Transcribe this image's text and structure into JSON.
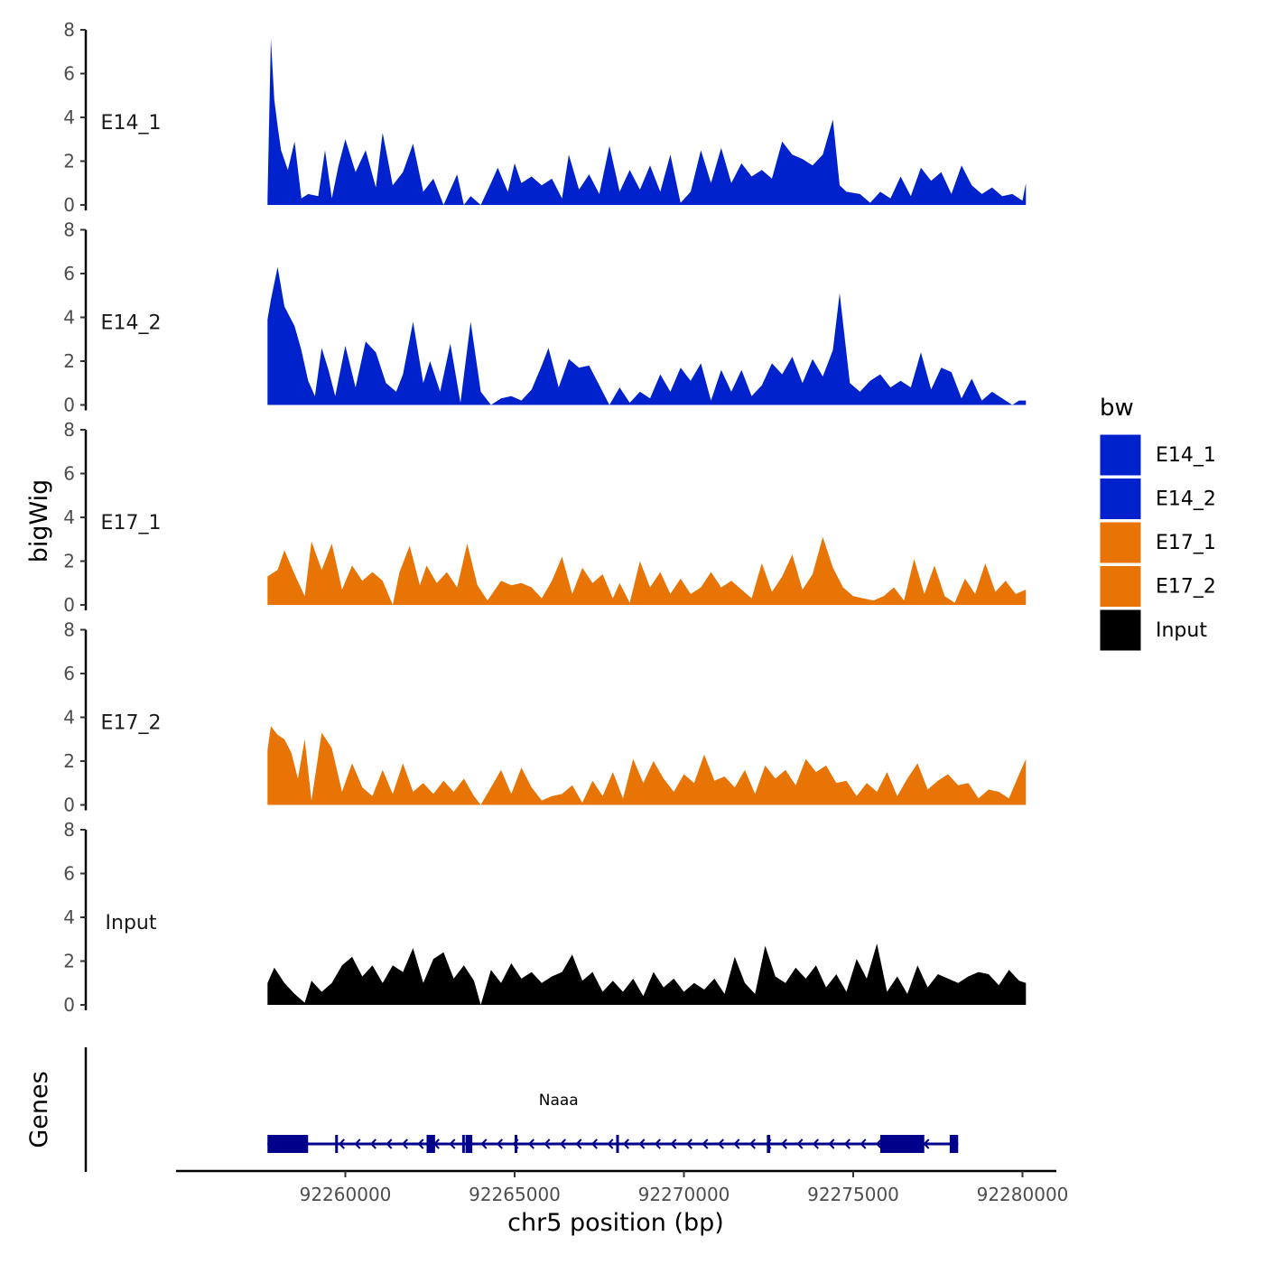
{
  "chart_data": {
    "type": "area",
    "chromosome": "chr5",
    "xlabel": "chr5 position (bp)",
    "ylabel": "bigWig",
    "genes_label": "Genes",
    "xlim": [
      92255000,
      92281000
    ],
    "data_range": [
      92257700,
      92280100
    ],
    "ylim": [
      0,
      8
    ],
    "y_ticks": [
      0,
      2,
      4,
      6,
      8
    ],
    "x_ticks": [
      92260000,
      92265000,
      92270000,
      92275000,
      92280000
    ],
    "x_tick_labels": [
      "92260000",
      "92265000",
      "92270000",
      "92275000",
      "92280000"
    ],
    "legend": {
      "title": "bw",
      "position": "right",
      "entries": [
        {
          "label": "E14_1",
          "color": "#0022CC"
        },
        {
          "label": "E14_2",
          "color": "#0022CC"
        },
        {
          "label": "E17_1",
          "color": "#E87405"
        },
        {
          "label": "E17_2",
          "color": "#E87405"
        },
        {
          "label": "Input",
          "color": "#000000"
        }
      ]
    },
    "series": [
      {
        "name": "E14_1",
        "color": "#0022CC",
        "x": [
          92257700,
          92257800,
          92257900,
          92258000,
          92258100,
          92258300,
          92258500,
          92258700,
          92258900,
          92259200,
          92259400,
          92259600,
          92259800,
          92260000,
          92260300,
          92260600,
          92260900,
          92261100,
          92261400,
          92261700,
          92262000,
          92262300,
          92262600,
          92262900,
          92263300,
          92263500,
          92263700,
          92264000,
          92264300,
          92264500,
          92264800,
          92265000,
          92265200,
          92265500,
          92265800,
          92266100,
          92266400,
          92266600,
          92266900,
          92267200,
          92267500,
          92267800,
          92268100,
          92268400,
          92268700,
          92269000,
          92269300,
          92269600,
          92269900,
          92270200,
          92270500,
          92270800,
          92271100,
          92271400,
          92271700,
          92272000,
          92272300,
          92272600,
          92272900,
          92273200,
          92273500,
          92273800,
          92274100,
          92274400,
          92274600,
          92274800,
          92275200,
          92275500,
          92275800,
          92276100,
          92276400,
          92276700,
          92277000,
          92277300,
          92277600,
          92277900,
          92278200,
          92278500,
          92278800,
          92279100,
          92279400,
          92279700,
          92280000,
          92280100
        ],
        "values": [
          0.3,
          7.6,
          4.8,
          3.6,
          2.5,
          1.6,
          2.9,
          0.3,
          0.5,
          0.4,
          2.5,
          0.3,
          1.8,
          3.0,
          1.5,
          2.5,
          0.8,
          3.3,
          0.9,
          1.5,
          2.8,
          0.6,
          1.2,
          0,
          1.4,
          0,
          0.4,
          0,
          1.0,
          1.7,
          0.6,
          1.9,
          1.0,
          1.3,
          0.9,
          1.2,
          0.3,
          2.3,
          0.7,
          1.4,
          0.5,
          2.7,
          0.6,
          1.6,
          0.7,
          1.8,
          0.6,
          2.3,
          0.1,
          0.6,
          2.5,
          1.0,
          2.6,
          1.0,
          1.9,
          1.3,
          1.6,
          1.2,
          2.9,
          2.3,
          2.1,
          1.8,
          2.3,
          3.9,
          0.9,
          0.6,
          0.5,
          0.1,
          0.6,
          0.3,
          1.3,
          0.4,
          1.7,
          1.1,
          1.5,
          0.5,
          1.8,
          0.9,
          0.5,
          0.8,
          0.4,
          0.5,
          0.2,
          1.0
        ]
      },
      {
        "name": "E14_2",
        "color": "#0022CC",
        "x": [
          92257700,
          92257800,
          92258000,
          92258200,
          92258500,
          92258700,
          92258900,
          92259100,
          92259300,
          92259500,
          92259700,
          92260000,
          92260300,
          92260600,
          92260900,
          92261200,
          92261500,
          92261700,
          92262000,
          92262300,
          92262500,
          92262800,
          92263100,
          92263400,
          92263700,
          92264000,
          92264300,
          92264600,
          92264900,
          92265200,
          92265500,
          92265800,
          92266000,
          92266300,
          92266600,
          92266900,
          92267200,
          92267500,
          92267800,
          92268100,
          92268400,
          92268700,
          92269000,
          92269300,
          92269600,
          92269900,
          92270200,
          92270500,
          92270800,
          92271100,
          92271400,
          92271700,
          92272000,
          92272300,
          92272600,
          92272900,
          92273200,
          92273500,
          92273800,
          92274100,
          92274400,
          92274600,
          92274900,
          92275200,
          92275500,
          92275800,
          92276100,
          92276400,
          92276700,
          92277000,
          92277300,
          92277600,
          92277900,
          92278200,
          92278500,
          92278800,
          92279100,
          92279400,
          92279700,
          92279900,
          92280100
        ],
        "values": [
          3.9,
          4.8,
          6.3,
          4.5,
          3.6,
          2.5,
          1.1,
          0.4,
          2.6,
          1.6,
          0.4,
          2.7,
          0.8,
          2.9,
          2.4,
          1.0,
          0.6,
          1.4,
          3.8,
          1.0,
          2.0,
          0.6,
          2.8,
          0.1,
          3.8,
          0.6,
          0,
          0.3,
          0.4,
          0.2,
          0.7,
          1.8,
          2.6,
          0.8,
          2.1,
          1.7,
          1.8,
          0.9,
          0,
          0.8,
          0.1,
          0.6,
          0.3,
          1.4,
          0.6,
          1.7,
          1.1,
          1.9,
          0.2,
          1.6,
          0.6,
          1.6,
          0.4,
          0.9,
          1.9,
          1.4,
          2.2,
          1.0,
          2.1,
          1.3,
          2.5,
          5.1,
          1.0,
          0.6,
          1.1,
          1.4,
          0.8,
          1.1,
          0.8,
          2.4,
          0.7,
          1.7,
          1.5,
          0.3,
          1.2,
          0.2,
          0.6,
          0.3,
          0,
          0.2,
          0.2
        ]
      },
      {
        "name": "E17_1",
        "color": "#E87405",
        "x": [
          92257700,
          92258000,
          92258200,
          92258500,
          92258800,
          92259000,
          92259300,
          92259600,
          92259900,
          92260200,
          92260500,
          92260800,
          92261100,
          92261400,
          92261600,
          92261900,
          92262200,
          92262400,
          92262700,
          92263000,
          92263300,
          92263600,
          92263900,
          92264200,
          92264600,
          92264900,
          92265200,
          92265500,
          92265800,
          92266100,
          92266400,
          92266700,
          92267000,
          92267300,
          92267600,
          92267900,
          92268100,
          92268400,
          92268700,
          92269000,
          92269300,
          92269600,
          92269900,
          92270200,
          92270500,
          92270800,
          92271100,
          92271400,
          92271700,
          92272000,
          92272300,
          92272600,
          92272900,
          92273200,
          92273500,
          92273800,
          92274100,
          92274400,
          92274700,
          92275000,
          92275300,
          92275600,
          92275900,
          92276200,
          92276500,
          92276800,
          92277100,
          92277400,
          92277700,
          92278000,
          92278300,
          92278600,
          92278900,
          92279200,
          92279500,
          92279800,
          92280100
        ],
        "values": [
          1.3,
          1.6,
          2.5,
          1.4,
          0.4,
          2.9,
          1.6,
          2.8,
          0.7,
          1.8,
          1.1,
          1.5,
          1.1,
          0,
          1.5,
          2.7,
          0.9,
          1.8,
          1.0,
          1.5,
          0.8,
          2.8,
          0.9,
          0.2,
          1.1,
          0.9,
          1.0,
          0.8,
          0.3,
          1.1,
          2.2,
          0.5,
          1.7,
          1.0,
          1.4,
          0.3,
          1.0,
          0.1,
          2.0,
          0.8,
          1.5,
          0.5,
          1.2,
          0.5,
          0.8,
          1.5,
          0.8,
          1.1,
          0.7,
          0.3,
          1.9,
          0.6,
          1.3,
          2.3,
          0.7,
          1.4,
          3.1,
          1.7,
          0.8,
          0.4,
          0.3,
          0.2,
          0.4,
          0.8,
          0.2,
          2.1,
          0.5,
          1.8,
          0.4,
          0.1,
          1.2,
          0.5,
          1.9,
          0.6,
          1.1,
          0.5,
          0.7
        ]
      },
      {
        "name": "E17_2",
        "color": "#E87405",
        "x": [
          92257700,
          92257800,
          92258000,
          92258200,
          92258400,
          92258600,
          92258800,
          92259000,
          92259300,
          92259600,
          92259900,
          92260200,
          92260500,
          92260800,
          92261100,
          92261400,
          92261700,
          92262000,
          92262300,
          92262600,
          92262900,
          92263200,
          92263500,
          92263800,
          92264000,
          92264300,
          92264600,
          92264900,
          92265200,
          92265500,
          92265800,
          92266100,
          92266400,
          92266700,
          92267000,
          92267300,
          92267600,
          92267900,
          92268200,
          92268500,
          92268800,
          92269100,
          92269400,
          92269700,
          92270000,
          92270300,
          92270600,
          92270900,
          92271200,
          92271500,
          92271800,
          92272100,
          92272400,
          92272700,
          92273000,
          92273300,
          92273600,
          92273900,
          92274200,
          92274500,
          92274800,
          92275100,
          92275400,
          92275700,
          92276000,
          92276300,
          92276600,
          92276900,
          92277200,
          92277500,
          92277800,
          92278100,
          92278400,
          92278700,
          92279000,
          92279300,
          92279600,
          92279900,
          92280100
        ],
        "values": [
          2.5,
          3.6,
          3.2,
          3.0,
          2.4,
          1.2,
          3.0,
          0.2,
          3.3,
          2.6,
          0.6,
          1.9,
          0.8,
          0.4,
          1.6,
          0.5,
          1.9,
          0.6,
          1.0,
          0.5,
          1.1,
          0.6,
          1.2,
          0.4,
          0,
          0.8,
          1.6,
          0.5,
          1.7,
          0.8,
          0.2,
          0.4,
          0.5,
          0.9,
          0.1,
          1.1,
          0.4,
          1.5,
          0.3,
          2.1,
          1.0,
          2.0,
          1.2,
          0.6,
          1.4,
          1.0,
          2.3,
          1.1,
          1.3,
          0.8,
          1.6,
          0.5,
          1.8,
          1.2,
          1.6,
          0.9,
          2.1,
          1.5,
          1.8,
          1.0,
          1.1,
          0.4,
          1.0,
          0.6,
          1.5,
          0.4,
          1.2,
          1.9,
          0.7,
          1.1,
          1.4,
          0.9,
          1.0,
          0.3,
          0.7,
          0.6,
          0.3,
          1.4,
          2.1
        ]
      },
      {
        "name": "Input",
        "color": "#000000",
        "x": [
          92257700,
          92257900,
          92258200,
          92258500,
          92258800,
          92259000,
          92259300,
          92259600,
          92259900,
          92260200,
          92260500,
          92260800,
          92261100,
          92261400,
          92261700,
          92262000,
          92262300,
          92262600,
          92262900,
          92263200,
          92263500,
          92263800,
          92264000,
          92264300,
          92264600,
          92264900,
          92265200,
          92265500,
          92265800,
          92266100,
          92266400,
          92266700,
          92267000,
          92267300,
          92267600,
          92267900,
          92268200,
          92268500,
          92268800,
          92269100,
          92269400,
          92269700,
          92270000,
          92270300,
          92270600,
          92270900,
          92271200,
          92271500,
          92271800,
          92272100,
          92272400,
          92272700,
          92273000,
          92273300,
          92273600,
          92273900,
          92274200,
          92274500,
          92274800,
          92275100,
          92275400,
          92275700,
          92276000,
          92276300,
          92276600,
          92276900,
          92277200,
          92277500,
          92277800,
          92278100,
          92278400,
          92278700,
          92279000,
          92279300,
          92279600,
          92279900,
          92280100
        ],
        "values": [
          1.0,
          1.7,
          1.0,
          0.5,
          0.1,
          1.1,
          0.6,
          1.0,
          1.8,
          2.2,
          1.3,
          1.8,
          1.0,
          1.8,
          1.5,
          2.6,
          1.0,
          2.1,
          2.4,
          1.2,
          1.8,
          1.1,
          0,
          1.6,
          1.0,
          1.9,
          1.2,
          1.5,
          1.0,
          1.3,
          1.5,
          2.3,
          1.1,
          1.5,
          0.6,
          1.1,
          0.6,
          1.2,
          0.4,
          1.5,
          0.8,
          1.2,
          0.6,
          1.0,
          0.7,
          1.2,
          0.5,
          2.2,
          1.0,
          0.5,
          2.7,
          1.3,
          1.0,
          1.7,
          1.2,
          1.8,
          0.8,
          1.4,
          0.6,
          2.1,
          1.2,
          2.8,
          0.6,
          1.3,
          0.5,
          1.8,
          0.8,
          1.4,
          1.2,
          1.0,
          1.3,
          1.5,
          1.4,
          0.9,
          1.6,
          1.1,
          1.0
        ]
      }
    ],
    "gene_track": {
      "gene_name": "Naaa",
      "color": "#00008B",
      "strand": "-",
      "start": 92257700,
      "end": 92278100,
      "exons": [
        {
          "start": 92257700,
          "end": 92258900,
          "type": "utr"
        },
        {
          "start": 92259700,
          "end": 92259760,
          "type": "cds"
        },
        {
          "start": 92262400,
          "end": 92262650,
          "type": "cds"
        },
        {
          "start": 92263450,
          "end": 92263500,
          "type": "cds"
        },
        {
          "start": 92263550,
          "end": 92263750,
          "type": "cds"
        },
        {
          "start": 92265000,
          "end": 92265060,
          "type": "cds"
        },
        {
          "start": 92268000,
          "end": 92268060,
          "type": "cds"
        },
        {
          "start": 92272450,
          "end": 92272550,
          "type": "cds"
        },
        {
          "start": 92275800,
          "end": 92277100,
          "type": "utr"
        },
        {
          "start": 92277850,
          "end": 92278100,
          "type": "cds"
        }
      ]
    }
  }
}
